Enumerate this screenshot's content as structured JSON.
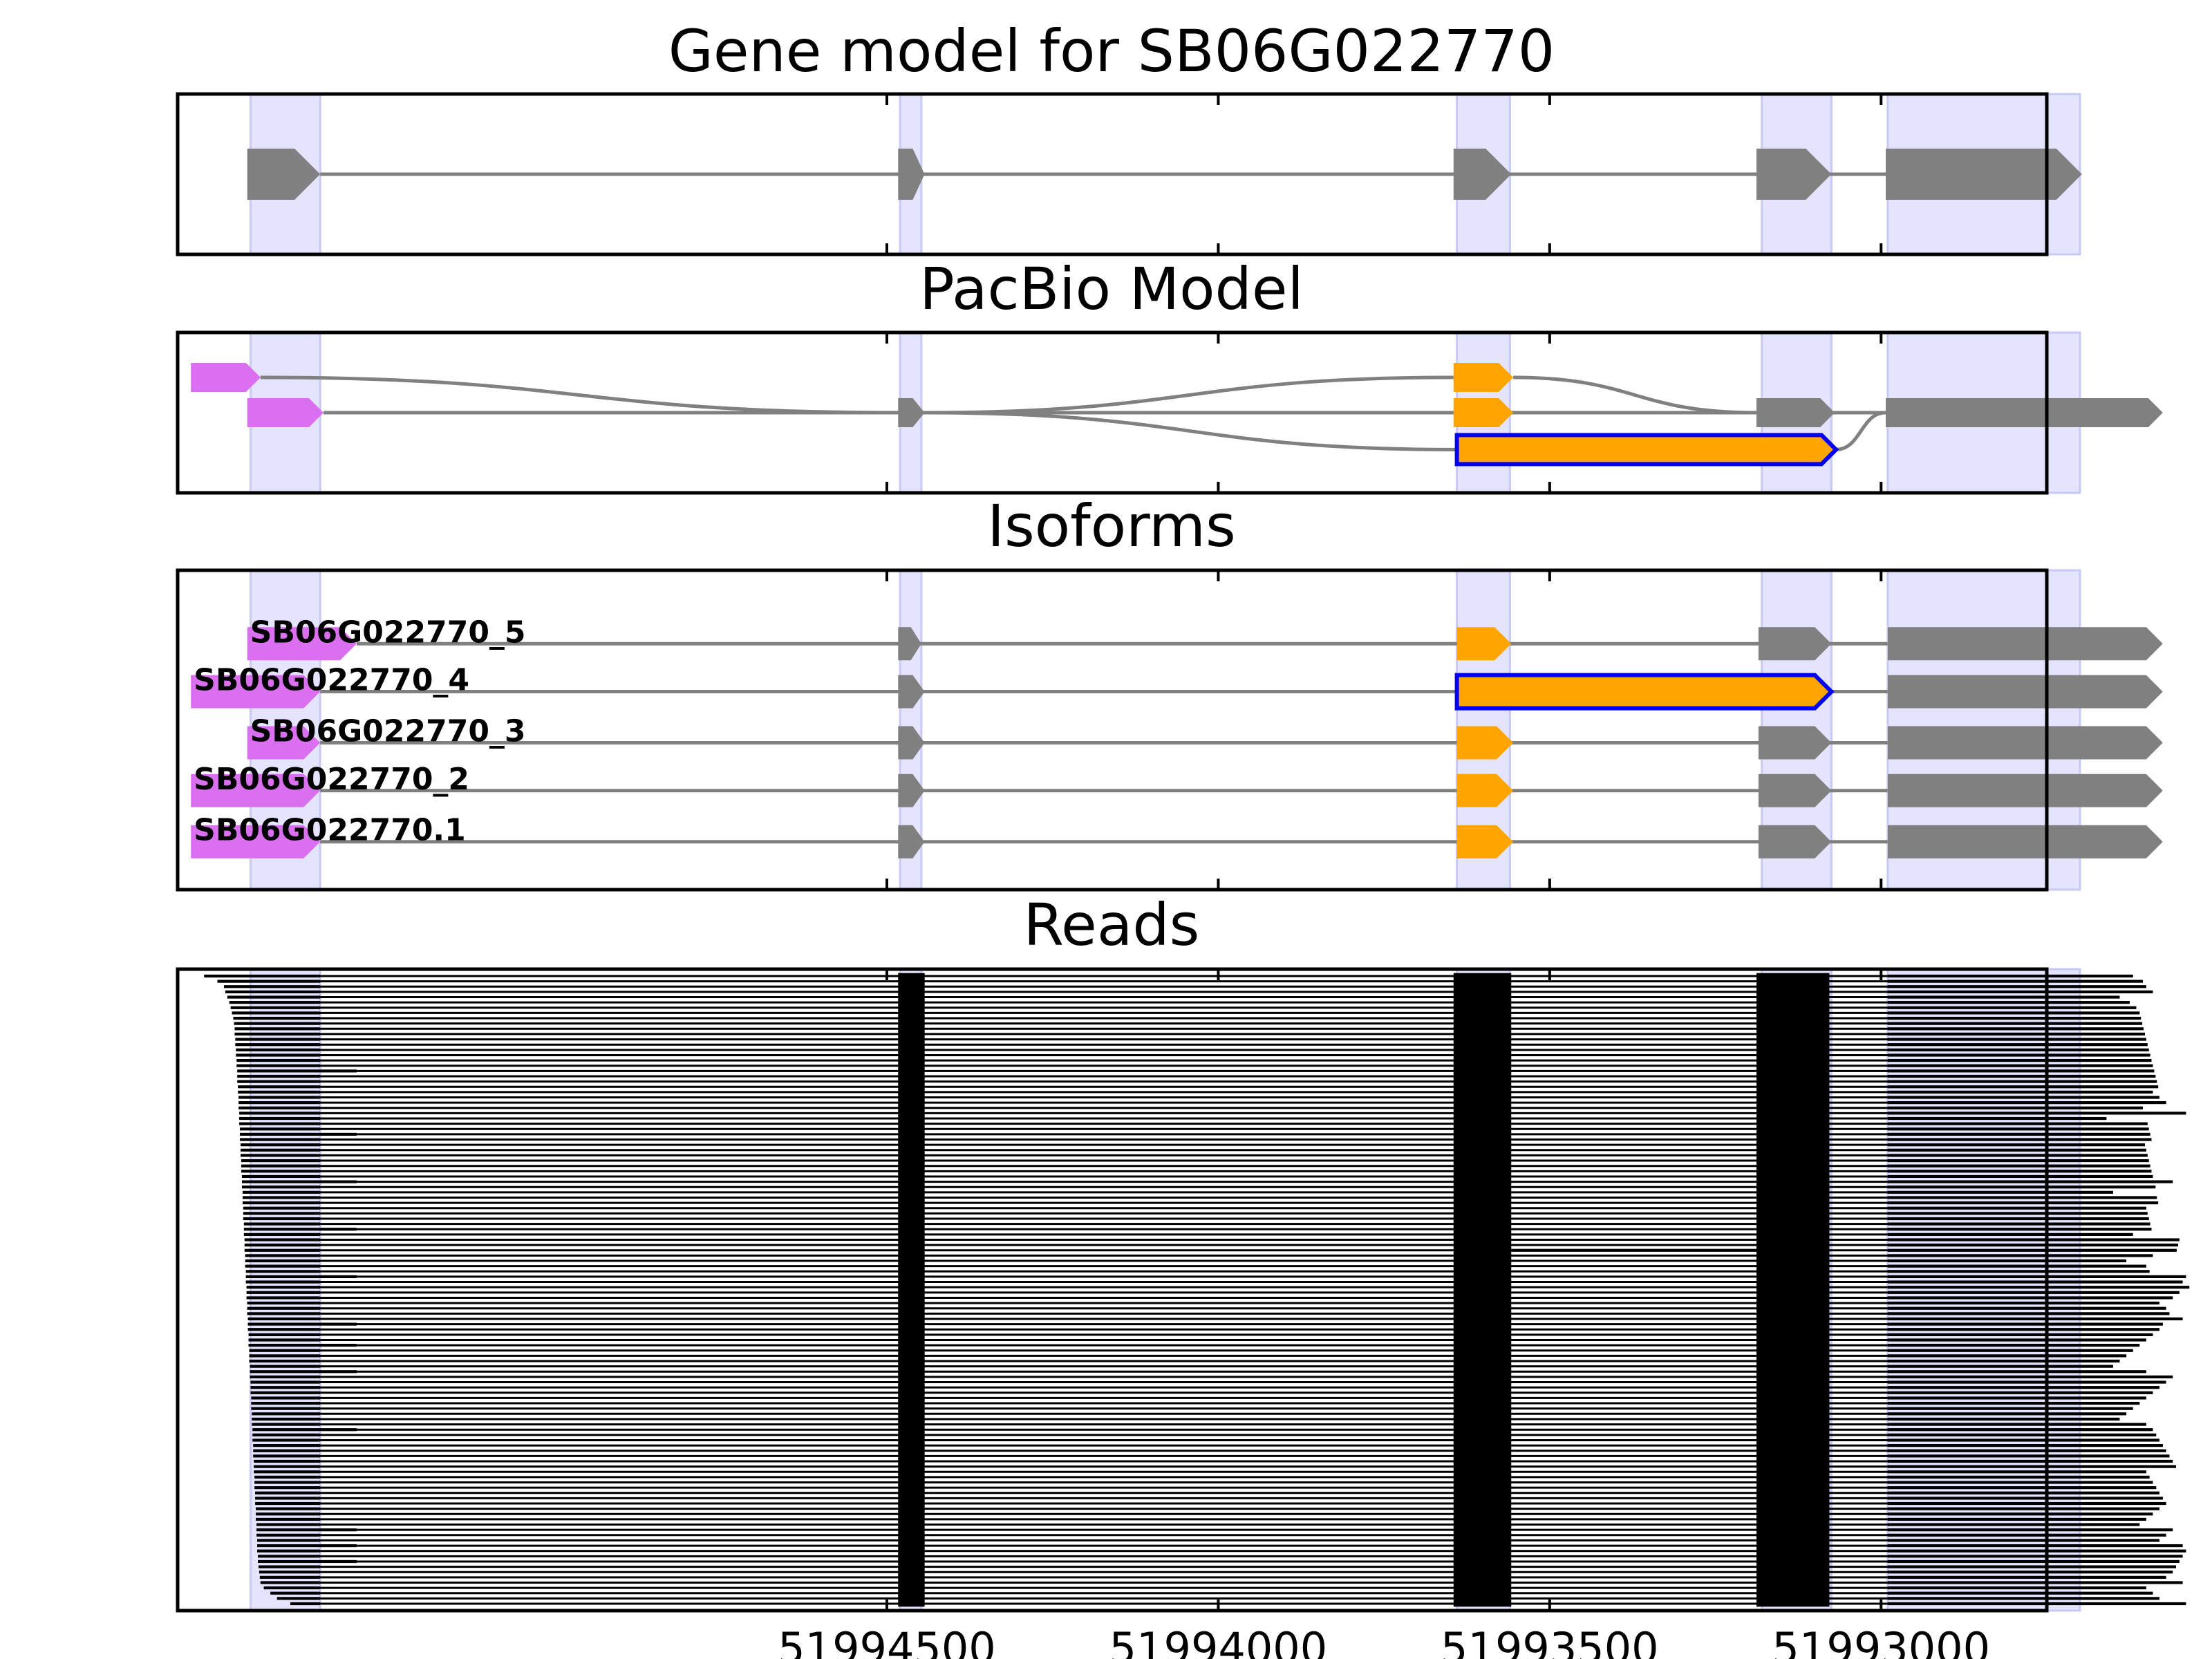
{
  "chart_data": {
    "type": "gene-track",
    "x_axis": {
      "lim": [
        51995570,
        51992750
      ],
      "inverted": true,
      "ticks": [
        51994500,
        51994000,
        51993500,
        51993000
      ],
      "tick_labels": [
        "51994500",
        "51994000",
        "51993500",
        "51993000"
      ]
    },
    "colors": {
      "gene_feature": "#808080",
      "utr5": "#da70f0",
      "alt_exon": "#ffa500",
      "highlight_outline": "#0000ee",
      "exon_band": "#e4e4fe",
      "intron_line": "#808080",
      "read": "#000000"
    },
    "exon_bands": [
      [
        51995460,
        51995355
      ],
      [
        51994480,
        51994448
      ],
      [
        51993640,
        51993560
      ],
      [
        51993180,
        51993075
      ],
      [
        51992990,
        51992700
      ]
    ],
    "panels": [
      {
        "title": "Gene model for SB06G022770",
        "features": [
          {
            "start": 51995465,
            "end": 51995355,
            "color": "gene"
          },
          {
            "start": 51994483,
            "end": 51994443,
            "color": "gene"
          },
          {
            "start": 51993645,
            "end": 51993558,
            "color": "gene"
          },
          {
            "start": 51993188,
            "end": 51993075,
            "color": "gene"
          },
          {
            "start": 51992993,
            "end": 51992697,
            "color": "gene"
          }
        ]
      },
      {
        "title": "PacBio Model",
        "isoforms": [
          {
            "y": 0.72,
            "features": [
              {
                "start": 51995550,
                "end": 51995445,
                "color": "utr5"
              },
              {
                "start": 51993645,
                "end": 51993555,
                "color": "alt"
              }
            ]
          },
          {
            "y": 0.5,
            "features": [
              {
                "start": 51995465,
                "end": 51995350,
                "color": "utr5"
              },
              {
                "start": 51994483,
                "end": 51994443,
                "color": "gene"
              },
              {
                "start": 51993645,
                "end": 51993555,
                "color": "alt"
              },
              {
                "start": 51993188,
                "end": 51993070,
                "color": "gene"
              },
              {
                "start": 51992993,
                "end": 51992575,
                "color": "gene"
              }
            ]
          },
          {
            "y": 0.27,
            "features": [
              {
                "start": 51993640,
                "end": 51993068,
                "color": "alt",
                "outline": true
              }
            ]
          }
        ]
      },
      {
        "title": "Isoforms",
        "isoforms": [
          {
            "label": "SB06G022770_5",
            "y": 0.77,
            "features": [
              {
                "start": 51995465,
                "end": 51995300,
                "color": "utr5"
              },
              {
                "start": 51994483,
                "end": 51994448,
                "color": "gene"
              },
              {
                "start": 51993640,
                "end": 51993558,
                "color": "alt"
              },
              {
                "start": 51993185,
                "end": 51993075,
                "color": "gene"
              },
              {
                "start": 51992990,
                "end": 51992575,
                "color": "gene"
              }
            ]
          },
          {
            "label": "SB06G022770_4",
            "y": 0.62,
            "features": [
              {
                "start": 51995550,
                "end": 51995355,
                "color": "utr5"
              },
              {
                "start": 51994483,
                "end": 51994443,
                "color": "gene"
              },
              {
                "start": 51993640,
                "end": 51993075,
                "color": "alt",
                "outline": true
              },
              {
                "start": 51992990,
                "end": 51992575,
                "color": "gene"
              }
            ]
          },
          {
            "label": "SB06G022770_3",
            "y": 0.46,
            "features": [
              {
                "start": 51995465,
                "end": 51995355,
                "color": "utr5"
              },
              {
                "start": 51994483,
                "end": 51994443,
                "color": "gene"
              },
              {
                "start": 51993640,
                "end": 51993555,
                "color": "alt"
              },
              {
                "start": 51993185,
                "end": 51993075,
                "color": "gene"
              },
              {
                "start": 51992990,
                "end": 51992575,
                "color": "gene"
              }
            ]
          },
          {
            "label": "SB06G022770_2",
            "y": 0.31,
            "features": [
              {
                "start": 51995550,
                "end": 51995355,
                "color": "utr5"
              },
              {
                "start": 51994483,
                "end": 51994443,
                "color": "gene"
              },
              {
                "start": 51993640,
                "end": 51993555,
                "color": "alt"
              },
              {
                "start": 51993185,
                "end": 51993075,
                "color": "gene"
              },
              {
                "start": 51992990,
                "end": 51992575,
                "color": "gene"
              }
            ]
          },
          {
            "label": "SB06G022770.1",
            "y": 0.15,
            "features": [
              {
                "start": 51995550,
                "end": 51995355,
                "color": "utr5"
              },
              {
                "start": 51994483,
                "end": 51994443,
                "color": "gene"
              },
              {
                "start": 51993640,
                "end": 51993555,
                "color": "alt"
              },
              {
                "start": 51993185,
                "end": 51993075,
                "color": "gene"
              },
              {
                "start": 51992990,
                "end": 51992575,
                "color": "gene"
              }
            ]
          }
        ]
      },
      {
        "title": "Reads",
        "read_count": 120,
        "read_blocks": [
          [
            51994483,
            51994443
          ],
          [
            51993645,
            51993558
          ],
          [
            51993188,
            51993078
          ]
        ],
        "last_block_start": 51992990,
        "utr_block_end": 51995355,
        "read_starts": [
          51995530,
          51995510,
          51995500,
          51995498,
          51995495,
          51995492,
          51995490,
          51995488,
          51995486,
          51995485,
          51995484,
          51995484,
          51995483,
          51995483,
          51995482,
          51995482,
          51995481,
          51995481,
          51995480,
          51995480,
          51995480,
          51995479,
          51995479,
          51995478,
          51995478,
          51995478,
          51995477,
          51995477,
          51995477,
          51995476,
          51995476,
          51995476,
          51995475,
          51995475,
          51995475,
          51995474,
          51995474,
          51995474,
          51995473,
          51995473,
          51995473,
          51995472,
          51995472,
          51995472,
          51995471,
          51995471,
          51995471,
          51995470,
          51995470,
          51995470,
          51995469,
          51995469,
          51995469,
          51995468,
          51995468,
          51995468,
          51995467,
          51995467,
          51995467,
          51995466,
          51995466,
          51995466,
          51995465,
          51995465,
          51995465,
          51995464,
          51995464,
          51995464,
          51995463,
          51995463,
          51995463,
          51995462,
          51995462,
          51995462,
          51995461,
          51995461,
          51995461,
          51995460,
          51995460,
          51995460,
          51995459,
          51995459,
          51995459,
          51995458,
          51995458,
          51995458,
          51995457,
          51995457,
          51995457,
          51995456,
          51995456,
          51995456,
          51995455,
          51995455,
          51995455,
          51995454,
          51995454,
          51995454,
          51995453,
          51995453,
          51995453,
          51995452,
          51995452,
          51995452,
          51995451,
          51995451,
          51995451,
          51995450,
          51995450,
          51995450,
          51995449,
          51995449,
          51995448,
          51995447,
          51995446,
          51995445,
          51995440,
          51995430,
          51995420,
          51995400
        ],
        "read_ends": [
          51992620,
          51992605,
          51992600,
          51992590,
          51992640,
          51992625,
          51992615,
          51992610,
          51992608,
          51992606,
          51992604,
          51992602,
          51992600,
          51992598,
          51992596,
          51992594,
          51992592,
          51992590,
          51992588,
          51992586,
          51992584,
          51992582,
          51992590,
          51992580,
          51992570,
          51992605,
          51992540,
          51992660,
          51992598,
          51992596,
          51992594,
          51992592,
          51992602,
          51992600,
          51992598,
          51992596,
          51992594,
          51992592,
          51992590,
          51992560,
          51992586,
          51992650,
          51992584,
          51992582,
          51992600,
          51992598,
          51992596,
          51992594,
          51992592,
          51992620,
          51992550,
          51992552,
          51992554,
          51992590,
          51992630,
          51992600,
          51992595,
          51992540,
          51992545,
          51992535,
          51992550,
          51992560,
          51992580,
          51992570,
          51992565,
          51992545,
          51992575,
          51992580,
          51992590,
          51992600,
          51992610,
          51992620,
          51992630,
          51992640,
          51992650,
          51992600,
          51992560,
          51992570,
          51992580,
          51992590,
          51992600,
          51992610,
          51992620,
          51992630,
          51992640,
          51992600,
          51992590,
          51992585,
          51992580,
          51992575,
          51992570,
          51992565,
          51992560,
          51992555,
          51992600,
          51992595,
          51992590,
          51992585,
          51992580,
          51992575,
          51992570,
          51992580,
          51992590,
          51992600,
          51992610,
          51992560,
          51992570,
          51992580,
          51992545,
          51992540,
          51992545,
          51992550,
          51992555,
          51992560,
          51992570,
          51992545,
          51992600,
          51992590,
          51992580,
          51992540
        ],
        "extended_utr_rows": [
          18,
          30,
          39,
          48,
          57,
          66,
          70,
          75,
          86,
          105,
          108,
          111
        ],
        "extended_utr_end": 51995300,
        "intron_retention_row": 52
      }
    ]
  }
}
